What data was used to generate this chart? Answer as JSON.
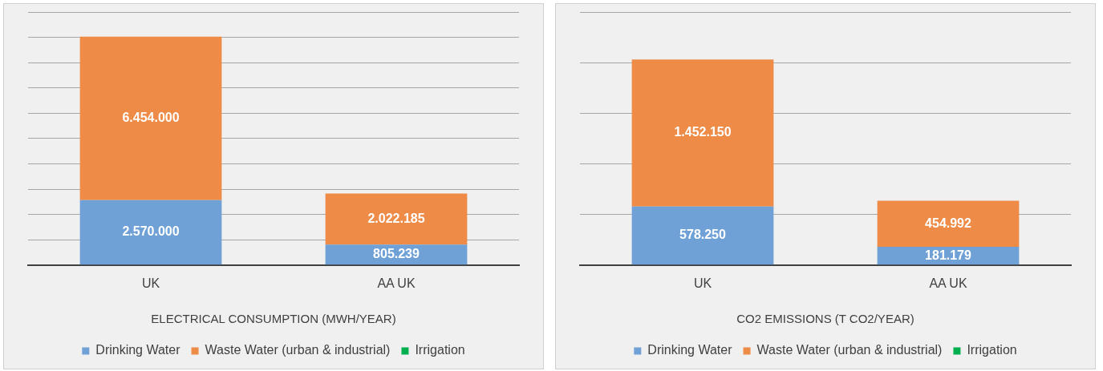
{
  "chart_data": [
    {
      "type": "bar",
      "stacked": true,
      "xlabel": "ELECTRICAL CONSUMPTION (MWH/YEAR)",
      "categories": [
        "UK",
        "AA UK"
      ],
      "series": [
        {
          "name": "Drinking Water",
          "color": "#6fa0d6",
          "values": [
            2570000,
            805239
          ],
          "value_labels": [
            "2.570.000",
            "805.239"
          ]
        },
        {
          "name": "Waste Water (urban & industrial)",
          "color": "#ed8b47",
          "values": [
            6454000,
            2022185
          ],
          "value_labels": [
            "6.454.000",
            "2.022.185"
          ]
        },
        {
          "name": "Irrigation",
          "color": "#00b050",
          "values": [
            null,
            null
          ]
        }
      ],
      "ylim": [
        0,
        10000000
      ],
      "yticks": [
        {
          "value": 0,
          "label": null
        },
        {
          "value": 1000000,
          "label": null
        },
        {
          "value": 2000000,
          "label": null
        },
        {
          "value": 3000000,
          "label": null
        },
        {
          "value": 4000000,
          "label": null
        },
        {
          "value": 5000000,
          "label": null
        },
        {
          "value": 6000000,
          "label": null
        },
        {
          "value": 7000000,
          "label": null
        },
        {
          "value": 8000000,
          "label": null
        },
        {
          "value": 9000000,
          "label": null
        },
        {
          "value": 10000000,
          "label": null
        }
      ],
      "grid": "y",
      "tick_labels": "x",
      "legend": "bottom"
    },
    {
      "type": "bar",
      "stacked": true,
      "xlabel": "CO2 EMISSIONS (T CO2/YEAR)",
      "categories": [
        "UK",
        "AA UK"
      ],
      "series": [
        {
          "name": "Drinking Water",
          "color": "#6fa0d6",
          "values": [
            578250,
            181179
          ],
          "value_labels": [
            "578.250",
            "181.179"
          ]
        },
        {
          "name": "Waste Water (urban & industrial)",
          "color": "#ed8b47",
          "values": [
            1452150,
            454992
          ],
          "value_labels": [
            "1.452.150",
            "454.992"
          ]
        },
        {
          "name": "Irrigation",
          "color": "#00b050",
          "values": [
            null,
            null
          ]
        }
      ],
      "ylim": [
        0,
        2500000
      ],
      "yticks": [
        {
          "value": 0,
          "label": null
        },
        {
          "value": 500000,
          "label": null
        },
        {
          "value": 1000000,
          "label": null
        },
        {
          "value": 1500000,
          "label": null
        },
        {
          "value": 2000000,
          "label": null
        },
        {
          "value": 2500000,
          "label": null
        }
      ],
      "grid": "y",
      "tick_labels": "x",
      "legend": "bottom"
    }
  ]
}
